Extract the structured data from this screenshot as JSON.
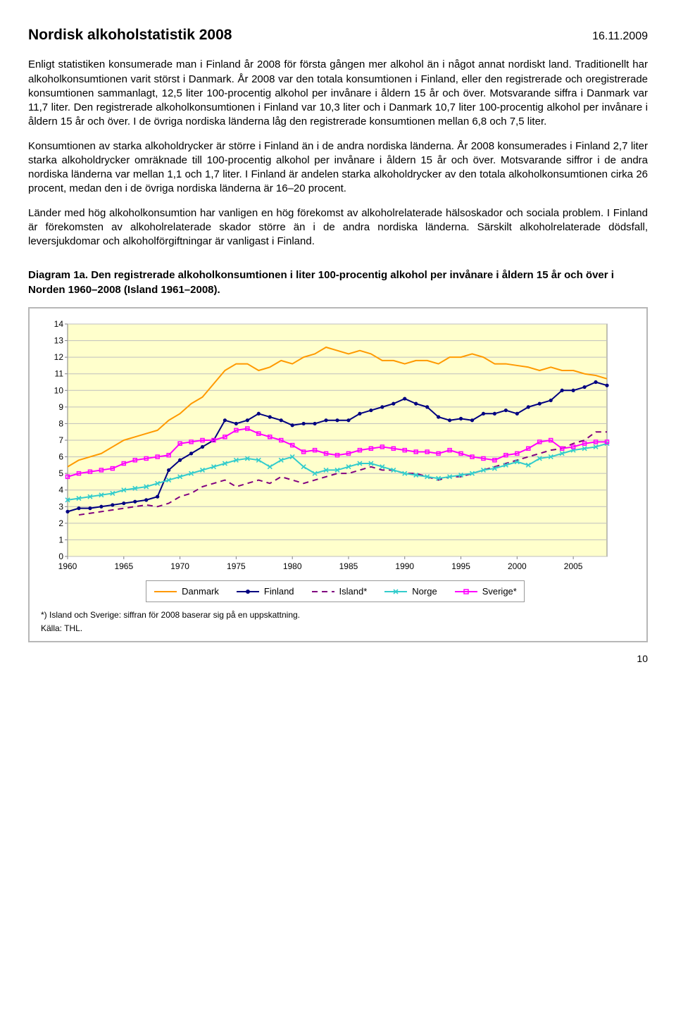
{
  "header": {
    "title": "Nordisk alkoholstatistik 2008",
    "date": "16.11.2009"
  },
  "body": {
    "p1": "Enligt statistiken konsumerade man i Finland år 2008 för första gången mer alkohol än i något annat nordiskt land. Traditionellt har alkoholkonsumtionen varit störst i Danmark. År 2008 var den totala konsumtionen i Finland, eller den registrerade och oregistrerade konsumtionen sammanlagt, 12,5 liter 100-procentig alkohol per invånare i åldern 15 år och över. Motsvarande siffra i Danmark var 11,7 liter. Den registrerade alkoholkonsumtionen i Finland var 10,3 liter och i Danmark 10,7 liter 100-procentig alkohol per invånare i åldern 15 år och över. I de övriga nordiska länderna låg den registrerade konsumtionen mellan 6,8 och 7,5 liter.",
    "p2": "Konsumtionen av starka alkoholdrycker är större i Finland än i de andra nordiska länderna. År 2008 konsumerades i Finland 2,7 liter starka alkoholdrycker omräknade till 100-procentig alkohol per invånare i åldern 15 år och över. Motsvarande siffror i de andra nordiska länderna var mellan 1,1 och 1,7 liter. I Finland är andelen starka alkoholdrycker av den totala alkoholkonsumtionen cirka 26 procent, medan den i de övriga nordiska länderna är 16–20 procent.",
    "p3": "Länder med hög alkoholkonsumtion har vanligen en hög förekomst av alkoholrelaterade hälsoskador och sociala problem. I Finland är förekomsten av alkoholrelaterade skador större än i de andra nordiska länderna. Särskilt alkoholrelaterade dödsfall, leversjukdomar och alkoholförgiftningar är vanligast i Finland."
  },
  "chart": {
    "caption": "Diagram 1a. Den registrerade alkoholkonsumtionen i liter 100-procentig alkohol per invånare i åldern 15 år och över i Norden 1960–2008 (Island 1961–2008).",
    "footnote": "*) Island och Sverige: siffran för 2008 baserar sig på en uppskattning.",
    "source": "Källa: THL.",
    "x": {
      "min": 1960,
      "max": 2008,
      "ticks": [
        1960,
        1965,
        1970,
        1975,
        1980,
        1985,
        1990,
        1995,
        2000,
        2005
      ]
    },
    "y": {
      "min": 0,
      "max": 14,
      "ticks": [
        0,
        1,
        2,
        3,
        4,
        5,
        6,
        7,
        8,
        9,
        10,
        11,
        12,
        13,
        14
      ]
    },
    "plot_bg": "#ffffcc",
    "grid_color": "#bfbfbf",
    "axis_color": "#808080",
    "tick_fontsize": 12,
    "series": [
      {
        "name": "Danmark",
        "color": "#ff9900",
        "dash": "",
        "marker": false,
        "years": [
          1960,
          1961,
          1962,
          1963,
          1964,
          1965,
          1966,
          1967,
          1968,
          1969,
          1970,
          1971,
          1972,
          1973,
          1974,
          1975,
          1976,
          1977,
          1978,
          1979,
          1980,
          1981,
          1982,
          1983,
          1984,
          1985,
          1986,
          1987,
          1988,
          1989,
          1990,
          1991,
          1992,
          1993,
          1994,
          1995,
          1996,
          1997,
          1998,
          1999,
          2000,
          2001,
          2002,
          2003,
          2004,
          2005,
          2006,
          2007,
          2008
        ],
        "values": [
          5.4,
          5.8,
          6.0,
          6.2,
          6.6,
          7.0,
          7.2,
          7.4,
          7.6,
          8.2,
          8.6,
          9.2,
          9.6,
          10.4,
          11.2,
          11.6,
          11.6,
          11.2,
          11.4,
          11.8,
          11.6,
          12.0,
          12.2,
          12.6,
          12.4,
          12.2,
          12.4,
          12.2,
          11.8,
          11.8,
          11.6,
          11.8,
          11.8,
          11.6,
          12.0,
          12.0,
          12.2,
          12.0,
          11.6,
          11.6,
          11.5,
          11.4,
          11.2,
          11.4,
          11.2,
          11.2,
          11.0,
          10.9,
          10.7
        ]
      },
      {
        "name": "Finland",
        "color": "#000080",
        "dash": "",
        "marker": true,
        "marker_shape": "circle",
        "years": [
          1960,
          1961,
          1962,
          1963,
          1964,
          1965,
          1966,
          1967,
          1968,
          1969,
          1970,
          1971,
          1972,
          1973,
          1974,
          1975,
          1976,
          1977,
          1978,
          1979,
          1980,
          1981,
          1982,
          1983,
          1984,
          1985,
          1986,
          1987,
          1988,
          1989,
          1990,
          1991,
          1992,
          1993,
          1994,
          1995,
          1996,
          1997,
          1998,
          1999,
          2000,
          2001,
          2002,
          2003,
          2004,
          2005,
          2006,
          2007,
          2008
        ],
        "values": [
          2.7,
          2.9,
          2.9,
          3.0,
          3.1,
          3.2,
          3.3,
          3.4,
          3.6,
          5.2,
          5.8,
          6.2,
          6.6,
          7.0,
          8.2,
          8.0,
          8.2,
          8.6,
          8.4,
          8.2,
          7.9,
          8.0,
          8.0,
          8.2,
          8.2,
          8.2,
          8.6,
          8.8,
          9.0,
          9.2,
          9.5,
          9.2,
          9.0,
          8.4,
          8.2,
          8.3,
          8.2,
          8.6,
          8.6,
          8.8,
          8.6,
          9.0,
          9.2,
          9.4,
          10.0,
          10.0,
          10.2,
          10.5,
          10.3
        ]
      },
      {
        "name": "Island*",
        "color": "#800080",
        "dash": "8 6",
        "marker": false,
        "years": [
          1961,
          1962,
          1963,
          1964,
          1965,
          1966,
          1967,
          1968,
          1969,
          1970,
          1971,
          1972,
          1973,
          1974,
          1975,
          1976,
          1977,
          1978,
          1979,
          1980,
          1981,
          1982,
          1983,
          1984,
          1985,
          1986,
          1987,
          1988,
          1989,
          1990,
          1991,
          1992,
          1993,
          1994,
          1995,
          1996,
          1997,
          1998,
          1999,
          2000,
          2001,
          2002,
          2003,
          2004,
          2005,
          2006,
          2007,
          2008
        ],
        "values": [
          2.5,
          2.6,
          2.7,
          2.8,
          2.9,
          3.0,
          3.1,
          3.0,
          3.2,
          3.6,
          3.8,
          4.2,
          4.4,
          4.6,
          4.2,
          4.4,
          4.6,
          4.4,
          4.8,
          4.6,
          4.4,
          4.6,
          4.8,
          5.0,
          5.0,
          5.2,
          5.4,
          5.2,
          5.2,
          5.0,
          5.0,
          4.8,
          4.6,
          4.8,
          4.8,
          5.0,
          5.2,
          5.4,
          5.6,
          5.8,
          6.0,
          6.2,
          6.4,
          6.5,
          6.8,
          7.0,
          7.5,
          7.5
        ]
      },
      {
        "name": "Norge",
        "color": "#33cccc",
        "dash": "",
        "marker": true,
        "marker_shape": "x",
        "years": [
          1960,
          1961,
          1962,
          1963,
          1964,
          1965,
          1966,
          1967,
          1968,
          1969,
          1970,
          1971,
          1972,
          1973,
          1974,
          1975,
          1976,
          1977,
          1978,
          1979,
          1980,
          1981,
          1982,
          1983,
          1984,
          1985,
          1986,
          1987,
          1988,
          1989,
          1990,
          1991,
          1992,
          1993,
          1994,
          1995,
          1996,
          1997,
          1998,
          1999,
          2000,
          2001,
          2002,
          2003,
          2004,
          2005,
          2006,
          2007,
          2008
        ],
        "values": [
          3.4,
          3.5,
          3.6,
          3.7,
          3.8,
          4.0,
          4.1,
          4.2,
          4.4,
          4.6,
          4.8,
          5.0,
          5.2,
          5.4,
          5.6,
          5.8,
          5.9,
          5.8,
          5.4,
          5.8,
          6.0,
          5.4,
          5.0,
          5.2,
          5.2,
          5.4,
          5.6,
          5.6,
          5.4,
          5.2,
          5.0,
          4.9,
          4.8,
          4.7,
          4.8,
          4.9,
          5.0,
          5.2,
          5.3,
          5.5,
          5.7,
          5.5,
          5.9,
          6.0,
          6.2,
          6.4,
          6.5,
          6.6,
          6.8
        ]
      },
      {
        "name": "Sverige*",
        "color": "#ff00ff",
        "dash": "",
        "marker": true,
        "marker_shape": "square",
        "years": [
          1960,
          1961,
          1962,
          1963,
          1964,
          1965,
          1966,
          1967,
          1968,
          1969,
          1970,
          1971,
          1972,
          1973,
          1974,
          1975,
          1976,
          1977,
          1978,
          1979,
          1980,
          1981,
          1982,
          1983,
          1984,
          1985,
          1986,
          1987,
          1988,
          1989,
          1990,
          1991,
          1992,
          1993,
          1994,
          1995,
          1996,
          1997,
          1998,
          1999,
          2000,
          2001,
          2002,
          2003,
          2004,
          2005,
          2006,
          2007,
          2008
        ],
        "values": [
          4.8,
          5.0,
          5.1,
          5.2,
          5.3,
          5.6,
          5.8,
          5.9,
          6.0,
          6.1,
          6.8,
          6.9,
          7.0,
          7.0,
          7.2,
          7.6,
          7.7,
          7.4,
          7.2,
          7.0,
          6.7,
          6.3,
          6.4,
          6.2,
          6.1,
          6.2,
          6.4,
          6.5,
          6.6,
          6.5,
          6.4,
          6.3,
          6.3,
          6.2,
          6.4,
          6.2,
          6.0,
          5.9,
          5.8,
          6.1,
          6.2,
          6.5,
          6.9,
          7.0,
          6.5,
          6.6,
          6.8,
          6.9,
          6.9
        ]
      }
    ]
  },
  "pagenum": "10"
}
